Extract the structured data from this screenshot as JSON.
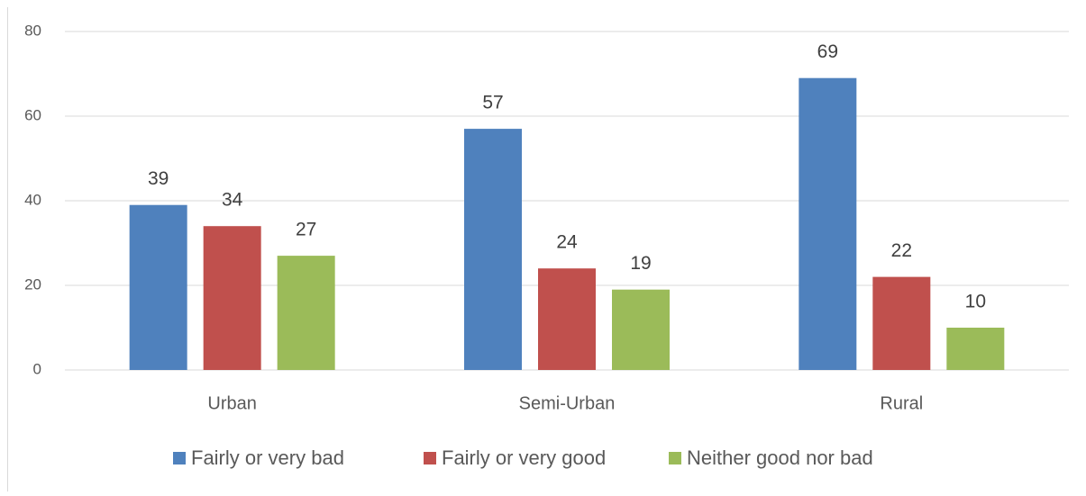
{
  "chart_data": {
    "type": "bar",
    "categories": [
      "Urban",
      "Semi-Urban",
      "Rural"
    ],
    "series": [
      {
        "name": "Fairly or very bad",
        "color": "#4f81bd",
        "values": [
          39,
          57,
          69
        ]
      },
      {
        "name": "Fairly or very good",
        "color": "#c0504d",
        "values": [
          34,
          24,
          22
        ]
      },
      {
        "name": "Neither good nor bad",
        "color": "#9bbb59",
        "values": [
          27,
          19,
          10
        ]
      }
    ],
    "ylim": [
      0,
      80
    ],
    "yticks": [
      0,
      20,
      40,
      60,
      80
    ],
    "grid": true,
    "legend": "bottom"
  }
}
